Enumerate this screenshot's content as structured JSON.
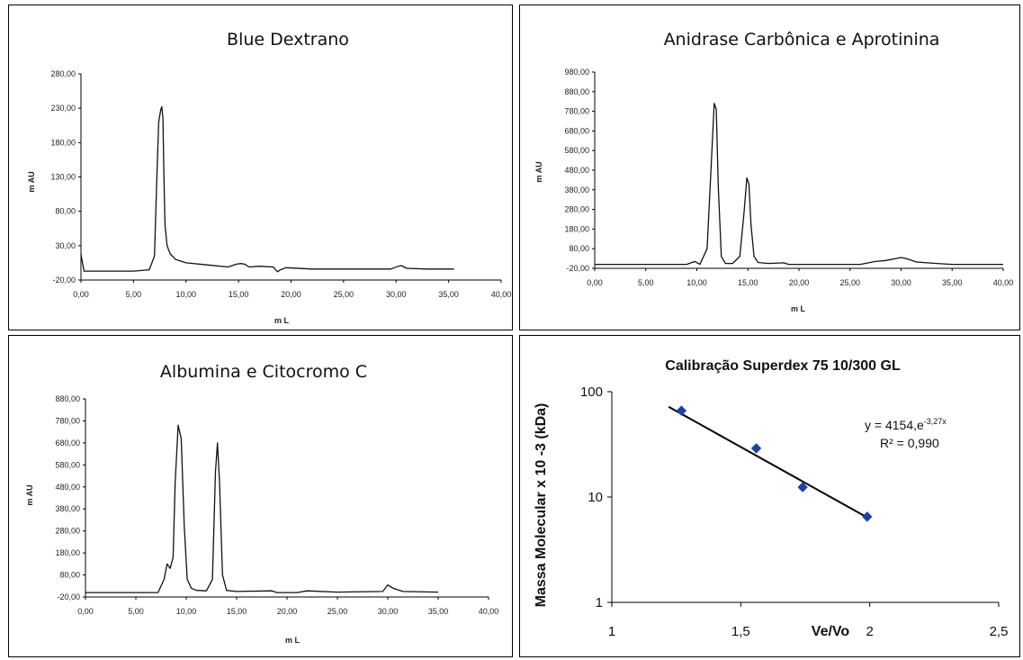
{
  "chart_data": [
    {
      "type": "line",
      "title": "Blue Dextrano",
      "xlabel": "m L",
      "ylabel": "m AU",
      "xlim": [
        0,
        40
      ],
      "ylim": [
        -20,
        280
      ],
      "xticks": [
        "0,00",
        "5,00",
        "10,00",
        "15,00",
        "20,00",
        "25,00",
        "30,00",
        "35,00",
        "40,00"
      ],
      "yticks": [
        "-20,00",
        "30,00",
        "80,00",
        "130,00",
        "180,00",
        "230,00",
        "280,00"
      ],
      "series": [
        {
          "x": [
            0.0,
            0.1,
            0.3,
            1.0,
            3.0,
            5.0,
            6.5,
            7.0,
            7.2,
            7.4,
            7.6,
            7.7,
            7.8,
            7.9,
            8.0,
            8.2,
            8.5,
            9.0,
            10.0,
            12.0,
            14.0,
            14.8,
            15.2,
            15.6,
            16.0,
            17.0,
            18.3,
            18.7,
            19.0,
            19.5,
            22.0,
            25.0,
            28.0,
            29.5,
            30.2,
            30.5,
            31.0,
            33.0,
            35.5
          ],
          "y": [
            18,
            8,
            -7,
            -7,
            -7,
            -7,
            -5,
            15,
            120,
            210,
            228,
            232,
            215,
            130,
            60,
            30,
            18,
            10,
            5,
            2,
            -1,
            3,
            4,
            3,
            -1,
            0,
            -1,
            -8,
            -5,
            -2,
            -4,
            -4,
            -4,
            -4,
            0,
            1,
            -3,
            -4,
            -4
          ]
        }
      ]
    },
    {
      "type": "line",
      "title": "Anidrase Carbônica e Aprotinina",
      "xlabel": "m L",
      "ylabel": "m AU",
      "xlim": [
        0,
        40
      ],
      "ylim": [
        -20,
        980
      ],
      "xticks": [
        "0,00",
        "5,00",
        "10,00",
        "15,00",
        "20,00",
        "25,00",
        "30,00",
        "35,00",
        "40,00"
      ],
      "yticks": [
        "-20,00",
        "80,00",
        "180,00",
        "280,00",
        "380,00",
        "480,00",
        "580,00",
        "680,00",
        "780,00",
        "880,00",
        "980,00"
      ],
      "series": [
        {
          "x": [
            0.0,
            5.0,
            9.0,
            9.8,
            10.3,
            11.0,
            11.4,
            11.7,
            11.9,
            12.1,
            12.4,
            12.8,
            13.5,
            14.2,
            14.6,
            14.9,
            15.1,
            15.3,
            15.6,
            16.0,
            17.0,
            18.5,
            19.0,
            22.0,
            26.0,
            27.5,
            28.5,
            29.5,
            30.0,
            30.5,
            31.5,
            33.5,
            35.0,
            40.0
          ],
          "y": [
            0,
            0,
            0,
            15,
            0,
            80,
            500,
            820,
            790,
            400,
            40,
            5,
            5,
            40,
            250,
            440,
            410,
            200,
            40,
            10,
            5,
            8,
            0,
            0,
            0,
            15,
            20,
            30,
            35,
            30,
            12,
            5,
            0,
            0
          ]
        }
      ]
    },
    {
      "type": "line",
      "title": "Albumina e Citocromo C",
      "xlabel": "m L",
      "ylabel": "m AU",
      "xlim": [
        0,
        40
      ],
      "ylim": [
        -20,
        880
      ],
      "xticks": [
        "0,00",
        "5,00",
        "10,00",
        "15,00",
        "20,00",
        "25,00",
        "30,00",
        "35,00",
        "40,00"
      ],
      "yticks": [
        "-20,00",
        "80,00",
        "180,00",
        "280,00",
        "380,00",
        "480,00",
        "580,00",
        "680,00",
        "780,00",
        "880,00"
      ],
      "series": [
        {
          "x": [
            0.0,
            5.0,
            7.2,
            7.8,
            8.1,
            8.4,
            8.7,
            8.9,
            9.2,
            9.5,
            9.8,
            10.1,
            10.5,
            11.0,
            12.0,
            12.6,
            12.9,
            13.1,
            13.3,
            13.6,
            14.0,
            15.0,
            18.5,
            19.0,
            21.0,
            22.0,
            25.0,
            29.5,
            30.0,
            30.5,
            31.5,
            35.0
          ],
          "y": [
            0,
            0,
            0,
            60,
            130,
            110,
            160,
            500,
            760,
            700,
            300,
            60,
            20,
            10,
            8,
            60,
            550,
            680,
            500,
            80,
            10,
            5,
            8,
            0,
            0,
            8,
            2,
            5,
            35,
            20,
            5,
            2
          ]
        }
      ]
    },
    {
      "type": "scatter",
      "title": "Calibração Superdex 75 10/300 GL",
      "xlabel": "Ve/Vo",
      "ylabel": "Massa Molecular x 10 -3 (kDa)",
      "xlim": [
        1,
        2.5
      ],
      "ylim": [
        1,
        100
      ],
      "yscale": "log",
      "xticks": [
        "1",
        "1,5",
        "2",
        "2,5"
      ],
      "yticks": [
        "1",
        "10",
        "100"
      ],
      "points": [
        {
          "x": 1.27,
          "y": 66
        },
        {
          "x": 1.56,
          "y": 29
        },
        {
          "x": 1.74,
          "y": 12.4
        },
        {
          "x": 1.99,
          "y": 6.5
        }
      ],
      "trendline": {
        "x": [
          1.22,
          2.0
        ],
        "y": [
          72,
          6.2
        ]
      },
      "annotation": {
        "equation": "y = 4154,e",
        "exponent": "-3,27x",
        "r2": "R² = 0,990"
      },
      "marker_color": "#1f3fa8"
    }
  ]
}
